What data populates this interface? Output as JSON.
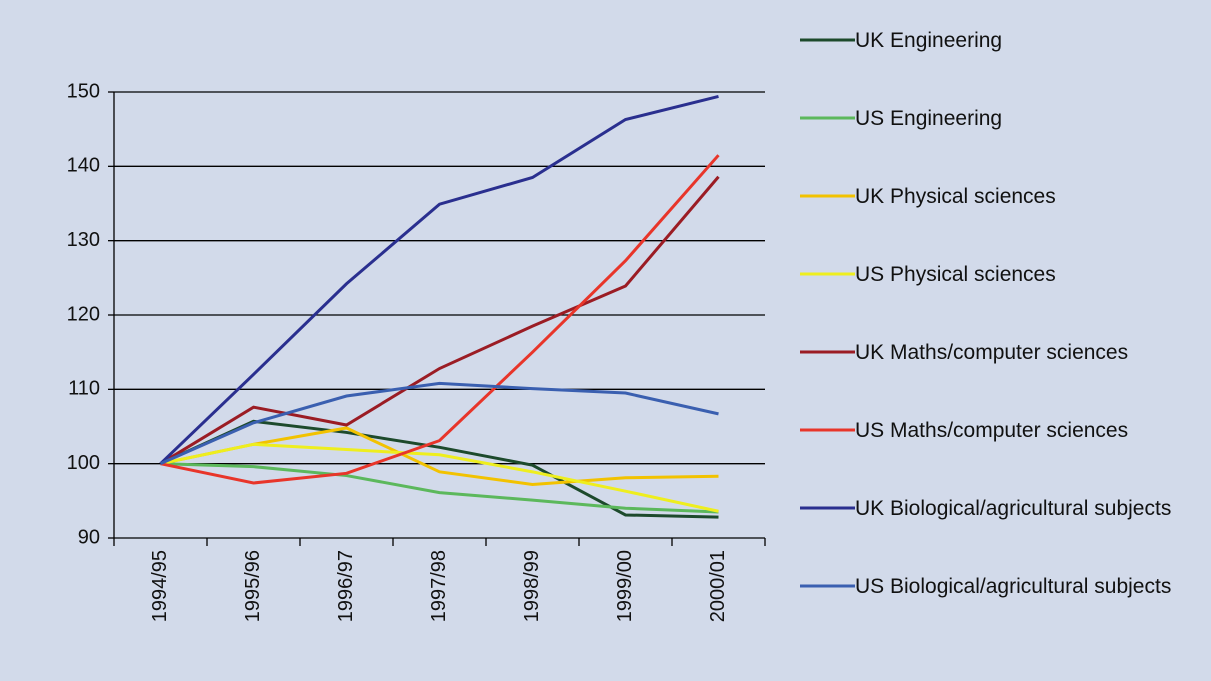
{
  "chart_data": {
    "type": "line",
    "categories": [
      "1994/95",
      "1995/96",
      "1996/97",
      "1997/98",
      "1998/99",
      "1999/00",
      "2000/01"
    ],
    "series": [
      {
        "name": "UK Engineering",
        "color": "#1d4a2c",
        "values": [
          100,
          105.7,
          104.2,
          102.2,
          99.8,
          93.1,
          92.8
        ]
      },
      {
        "name": "US Engineering",
        "color": "#5cb85c",
        "values": [
          100,
          99.6,
          98.4,
          96.1,
          95.1,
          94.0,
          93.5
        ]
      },
      {
        "name": "UK Physical sciences",
        "color": "#f2c200",
        "values": [
          100,
          102.6,
          104.8,
          98.9,
          97.2,
          98.1,
          98.3
        ]
      },
      {
        "name": "US Physical sciences",
        "color": "#eeee1e",
        "values": [
          100,
          102.6,
          101.9,
          101.2,
          98.9,
          96.3,
          93.6
        ]
      },
      {
        "name": "UK Maths/computer sciences",
        "color": "#9b1c24",
        "values": [
          100,
          107.6,
          105.2,
          112.8,
          118.5,
          123.9,
          138.6
        ]
      },
      {
        "name": "US Maths/computer sciences",
        "color": "#e8352a",
        "values": [
          100,
          97.4,
          98.7,
          103.1,
          115.0,
          127.3,
          141.5
        ]
      },
      {
        "name": "UK Biological/agricultural subjects",
        "color": "#2a2f8f",
        "values": [
          100,
          112.0,
          124.2,
          134.9,
          138.5,
          146.3,
          149.4
        ]
      },
      {
        "name": "US Biological/agricultural subjects",
        "color": "#3a5fb0",
        "values": [
          100,
          105.5,
          109.1,
          110.8,
          110.1,
          109.5,
          106.7
        ]
      }
    ],
    "ylim": [
      90,
      150
    ],
    "yticks": [
      90,
      100,
      110,
      120,
      130,
      140,
      150
    ],
    "grid": true
  }
}
